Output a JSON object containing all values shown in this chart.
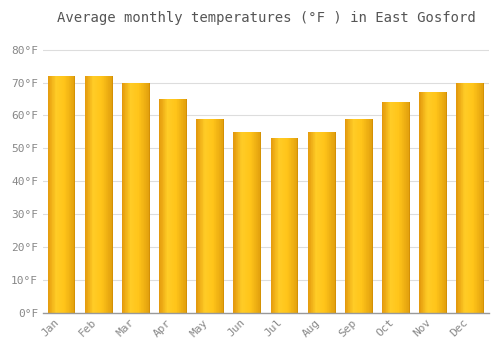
{
  "title": "Average monthly temperatures (°F ) in East Gosford",
  "months": [
    "Jan",
    "Feb",
    "Mar",
    "Apr",
    "May",
    "Jun",
    "Jul",
    "Aug",
    "Sep",
    "Oct",
    "Nov",
    "Dec"
  ],
  "values": [
    72,
    72,
    70,
    65,
    59,
    55,
    53,
    55,
    59,
    64,
    67,
    70
  ],
  "bar_color_main": "#FFAA00",
  "bar_color_light": "#FFD060",
  "bar_color_dark": "#E89000",
  "background_color": "#FFFFFF",
  "plot_bg_color": "#FFFFFF",
  "ylim": [
    0,
    85
  ],
  "yticks": [
    0,
    10,
    20,
    30,
    40,
    50,
    60,
    70,
    80
  ],
  "ytick_labels": [
    "0°F",
    "10°F",
    "20°F",
    "30°F",
    "40°F",
    "50°F",
    "60°F",
    "70°F",
    "80°F"
  ],
  "title_fontsize": 10,
  "tick_fontsize": 8,
  "grid_color": "#dddddd",
  "bar_width": 0.75
}
